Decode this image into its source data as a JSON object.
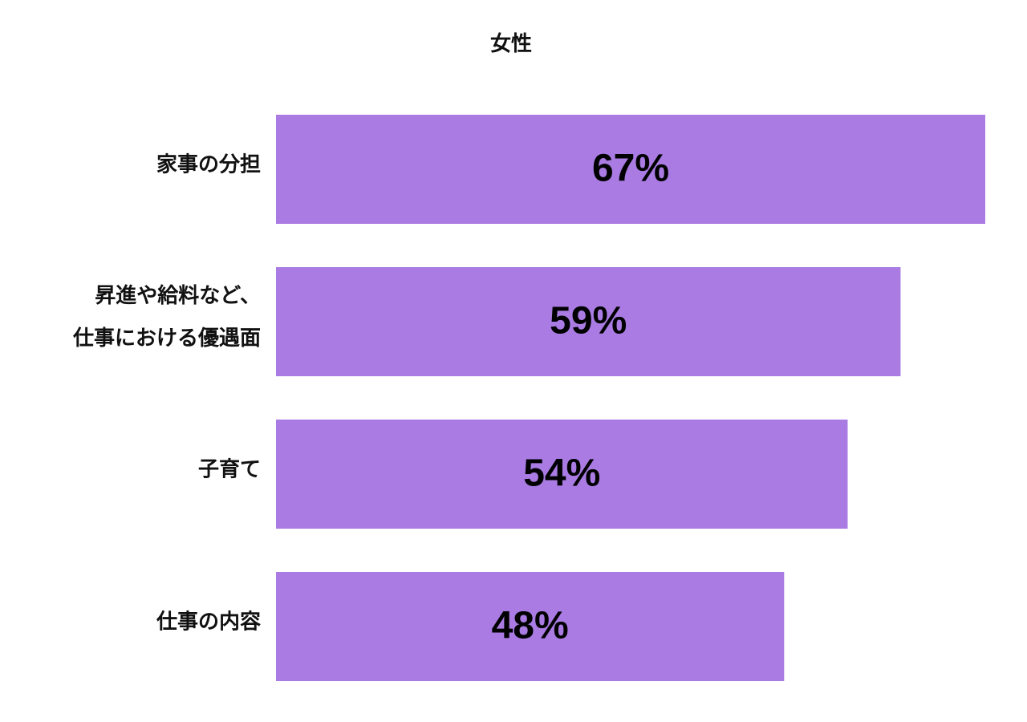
{
  "chart_data": {
    "type": "bar",
    "orientation": "horizontal",
    "title": "女性",
    "categories": [
      "家事の分担",
      "昇進や給料など、\n仕事における優遇面",
      "子育て",
      "仕事の内容"
    ],
    "values": [
      67,
      59,
      54,
      48
    ],
    "value_labels": [
      "67%",
      "59%",
      "54%",
      "48%"
    ],
    "color": "#a97be3",
    "grid": false
  }
}
